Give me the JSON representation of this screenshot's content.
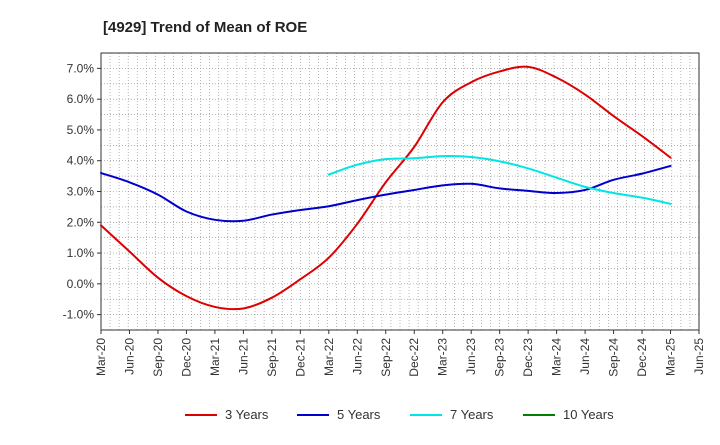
{
  "chart_data": {
    "type": "line",
    "title": "[4929]  Trend of Mean of ROE",
    "xlabel": "",
    "ylabel": "",
    "categories": [
      "Mar-20",
      "Jun-20",
      "Sep-20",
      "Dec-20",
      "Mar-21",
      "Jun-21",
      "Sep-21",
      "Dec-21",
      "Mar-22",
      "Jun-22",
      "Sep-22",
      "Dec-22",
      "Mar-23",
      "Jun-23",
      "Sep-23",
      "Dec-23",
      "Mar-24",
      "Jun-24",
      "Sep-24",
      "Dec-24",
      "Mar-25",
      "Jun-25"
    ],
    "ylim": [
      -1.5,
      7.5
    ],
    "yticks": [
      -1.0,
      0.0,
      1.0,
      2.0,
      3.0,
      4.0,
      5.0,
      6.0,
      7.0
    ],
    "ytick_labels": [
      "-1.0%",
      "0.0%",
      "1.0%",
      "2.0%",
      "3.0%",
      "4.0%",
      "5.0%",
      "6.0%",
      "7.0%"
    ],
    "grid": true,
    "legend_position": "bottom",
    "series": [
      {
        "name": "3 Years",
        "color": "#dd0000",
        "values": [
          1.9,
          1.05,
          0.2,
          -0.4,
          -0.75,
          -0.8,
          -0.45,
          0.15,
          0.85,
          1.95,
          3.3,
          4.45,
          5.9,
          6.55,
          6.9,
          7.05,
          6.7,
          6.15,
          5.45,
          4.8,
          4.1,
          null
        ]
      },
      {
        "name": "5 Years",
        "color": "#0000cc",
        "values": [
          3.6,
          3.3,
          2.9,
          2.35,
          2.08,
          2.05,
          2.25,
          2.4,
          2.52,
          2.72,
          2.9,
          3.05,
          3.2,
          3.25,
          3.1,
          3.02,
          2.95,
          3.05,
          3.38,
          3.58,
          3.83,
          null
        ]
      },
      {
        "name": "7 Years",
        "color": "#00e5e5",
        "values": [
          null,
          null,
          null,
          null,
          null,
          null,
          null,
          null,
          3.55,
          3.87,
          4.05,
          4.08,
          4.15,
          4.12,
          3.98,
          3.75,
          3.45,
          3.15,
          2.95,
          2.8,
          2.6,
          null
        ]
      },
      {
        "name": "10 Years",
        "color": "#008000",
        "values": [
          null,
          null,
          null,
          null,
          null,
          null,
          null,
          null,
          null,
          null,
          null,
          null,
          null,
          null,
          null,
          null,
          null,
          null,
          null,
          null,
          null,
          null
        ]
      }
    ]
  }
}
